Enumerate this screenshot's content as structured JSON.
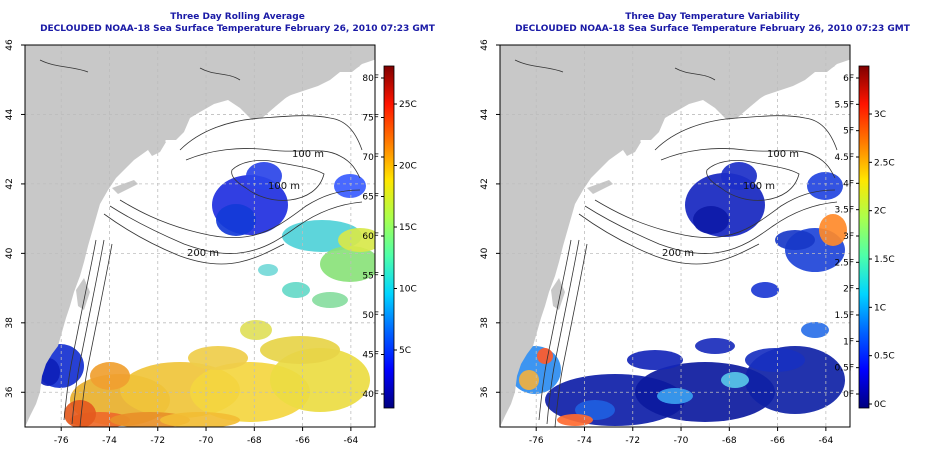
{
  "colors": {
    "land": "#c8c8c8",
    "water_bg": "#ffffff",
    "grid": "#bdbdbd",
    "contour": "#333333",
    "title": "#1a1aa6"
  },
  "panels": [
    {
      "id": "avg",
      "title": "Three Day Rolling Average",
      "subtitle": "DECLOUDED NOAA-18 Sea Surface Temperature February 26, 2010 07:23 GMT",
      "colorbar": {
        "left_ticks": [
          "80F",
          "75F",
          "70F",
          "65F",
          "60F",
          "55F",
          "50F",
          "45F",
          "40F"
        ],
        "right_ticks": [
          "25C",
          "20C",
          "15C",
          "10C",
          "5C"
        ]
      }
    },
    {
      "id": "var",
      "title": "Three Day Temperature Variability",
      "subtitle": "DECLOUDED NOAA-18 Sea Surface Temperature February 26, 2010 07:23 GMT",
      "colorbar": {
        "left_ticks": [
          "6F",
          "5.5F",
          "5F",
          "4.5F",
          "4F",
          "3.5F",
          "3F",
          "2.5F",
          "2F",
          "1.5F",
          "1F",
          "0.5F",
          "0F"
        ],
        "right_ticks": [
          "3C",
          "2.5C",
          "2C",
          "1.5C",
          "1C",
          "0.5C",
          "0C"
        ]
      }
    }
  ],
  "map_axes": {
    "x_ticks": [
      "-76",
      "-74",
      "-72",
      "-70",
      "-68",
      "-66",
      "-64"
    ],
    "y_ticks": [
      "36",
      "38",
      "40",
      "42",
      "44",
      "46"
    ]
  },
  "contour_labels": [
    "100 m",
    "100 m",
    "200 m"
  ]
}
